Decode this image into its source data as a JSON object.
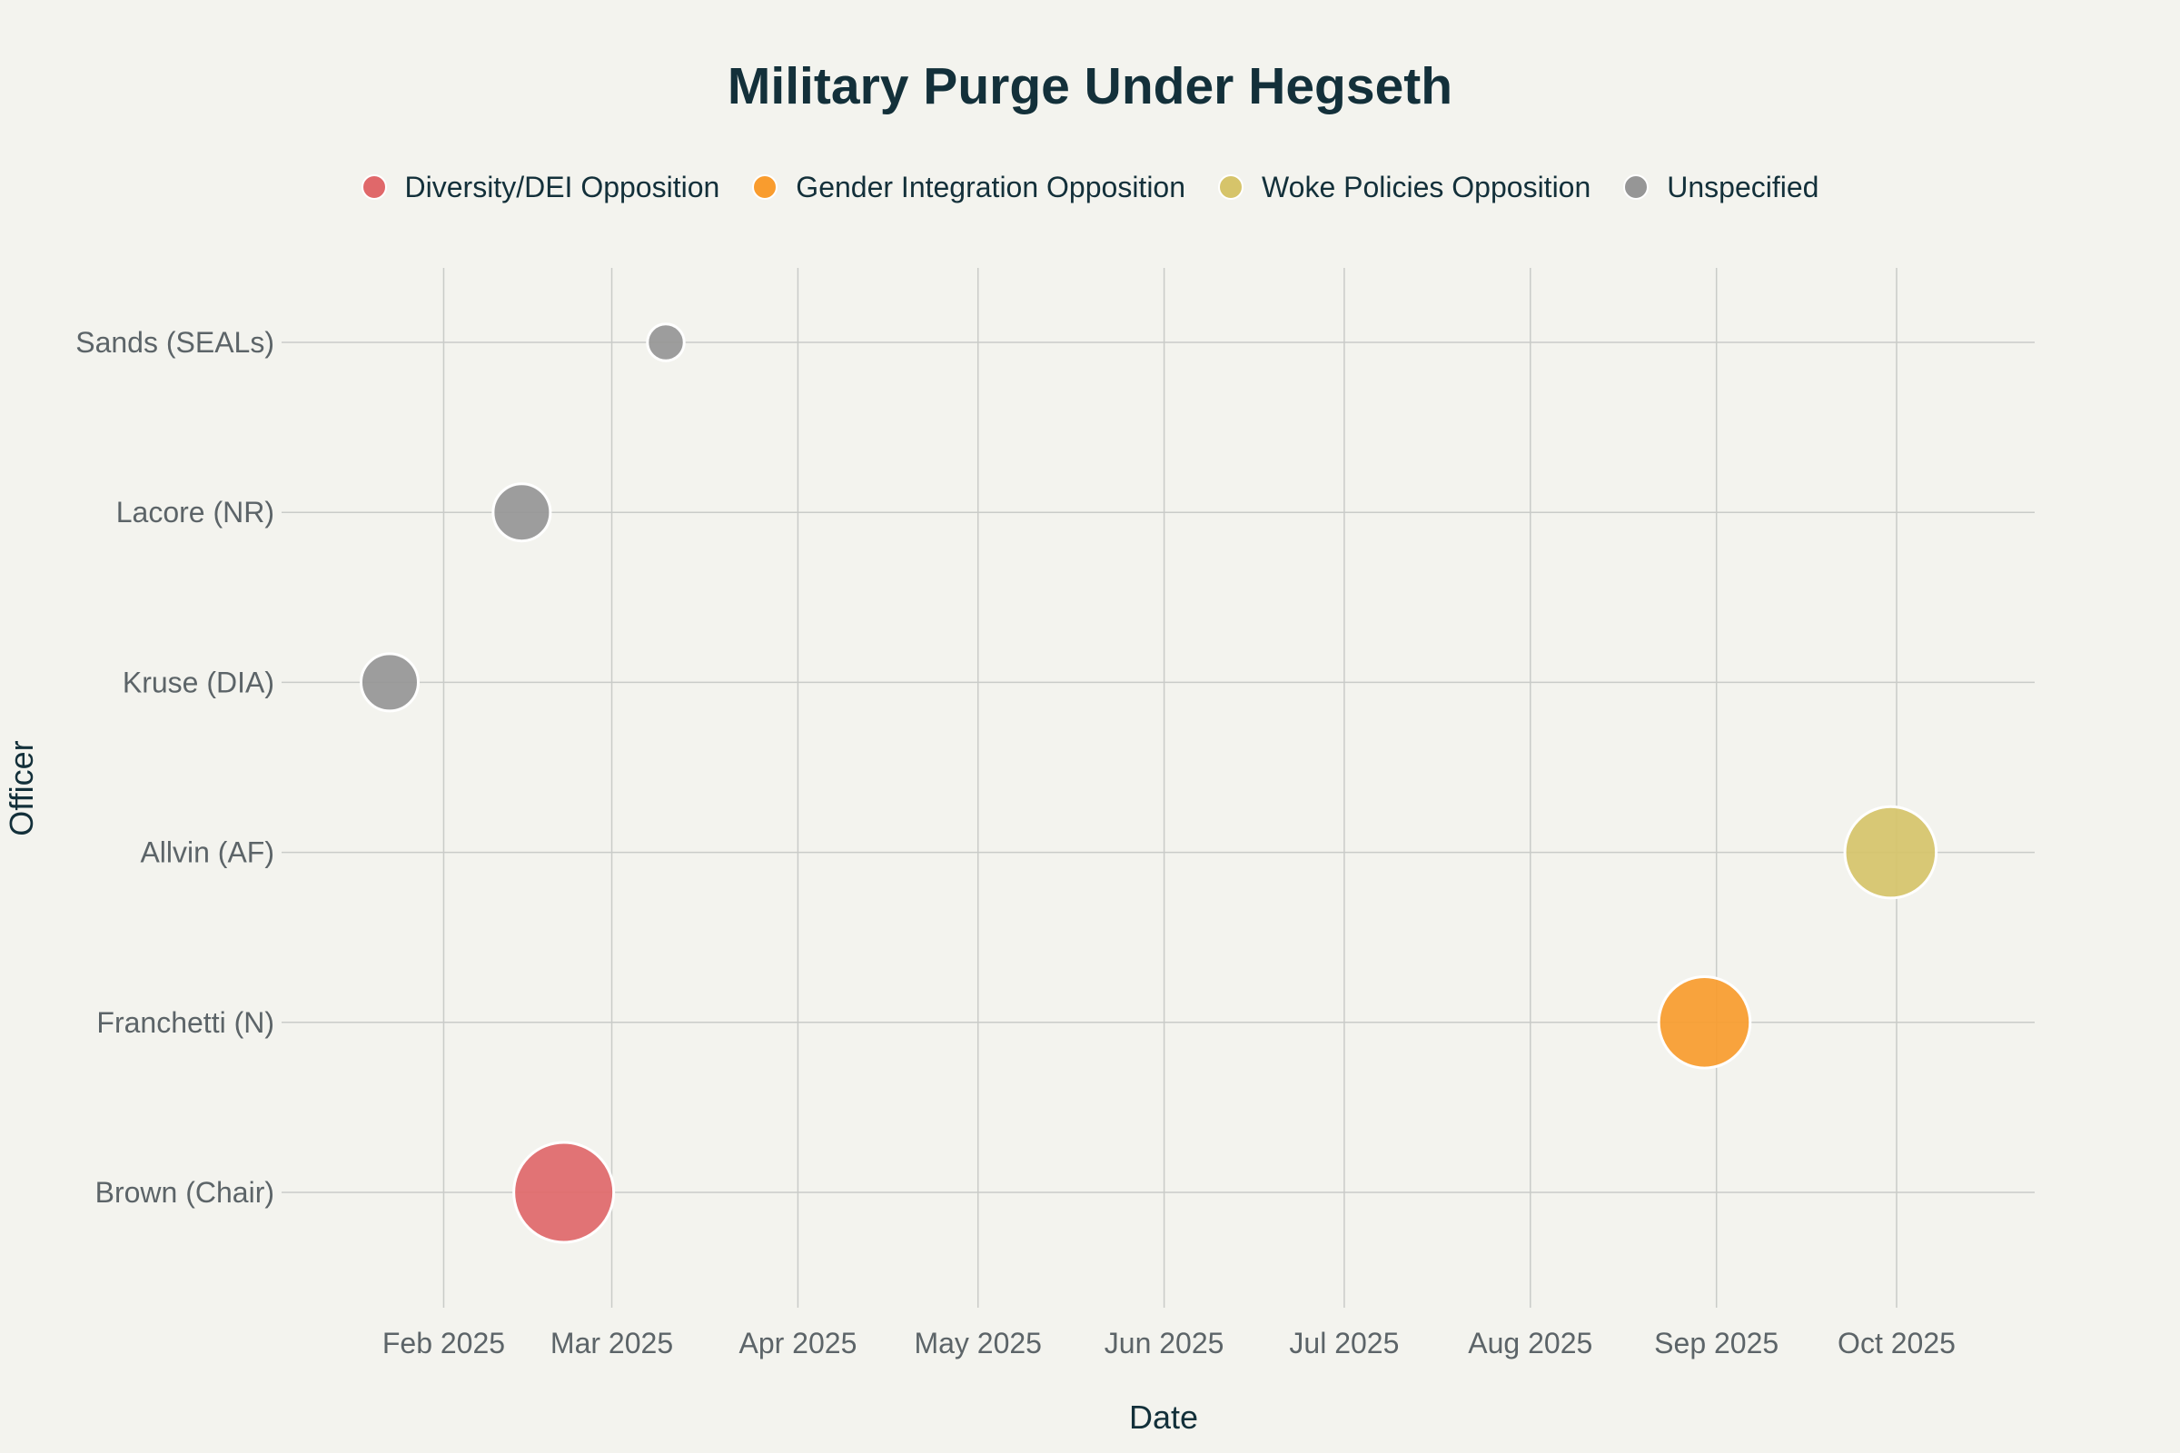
{
  "chart_data": {
    "type": "scatter",
    "title": "Military Purge Under Hegseth",
    "xlabel": "Date",
    "ylabel": "Officer",
    "x_axis_type": "date",
    "xlim": [
      "2025-01-05",
      "2025-10-24"
    ],
    "x_ticks": [
      {
        "date": "2025-02-01",
        "label": "Feb 2025"
      },
      {
        "date": "2025-03-01",
        "label": "Mar 2025"
      },
      {
        "date": "2025-04-01",
        "label": "Apr 2025"
      },
      {
        "date": "2025-05-01",
        "label": "May 2025"
      },
      {
        "date": "2025-06-01",
        "label": "Jun 2025"
      },
      {
        "date": "2025-07-01",
        "label": "Jul 2025"
      },
      {
        "date": "2025-08-01",
        "label": "Aug 2025"
      },
      {
        "date": "2025-09-01",
        "label": "Sep 2025"
      },
      {
        "date": "2025-10-01",
        "label": "Oct 2025"
      }
    ],
    "categories": [
      "Brown (Chair)",
      "Franchetti (N)",
      "Allvin (AF)",
      "Kruse (DIA)",
      "Lacore (NR)",
      "Sands (SEALs)"
    ],
    "grid": true,
    "legend_position": "top-center",
    "series": [
      {
        "name": "Diversity/DEI Opposition",
        "color": "#e0686a",
        "points": [
          {
            "y": "Brown (Chair)",
            "x": "2025-02-21",
            "size": 5
          }
        ]
      },
      {
        "name": "Gender Integration Opposition",
        "color": "#f99c2e",
        "points": [
          {
            "y": "Franchetti (N)",
            "x": "2025-08-30",
            "size": 4.5
          }
        ]
      },
      {
        "name": "Woke Policies Opposition",
        "color": "#d6c46a",
        "points": [
          {
            "y": "Allvin (AF)",
            "x": "2025-09-30",
            "size": 4.5
          }
        ]
      },
      {
        "name": "Unspecified",
        "color": "#969696",
        "points": [
          {
            "y": "Kruse (DIA)",
            "x": "2025-01-23",
            "size": 2.5
          },
          {
            "y": "Lacore (NR)",
            "x": "2025-02-14",
            "size": 2.5
          },
          {
            "y": "Sands (SEALs)",
            "x": "2025-03-10",
            "size": 1.3
          }
        ]
      }
    ]
  }
}
